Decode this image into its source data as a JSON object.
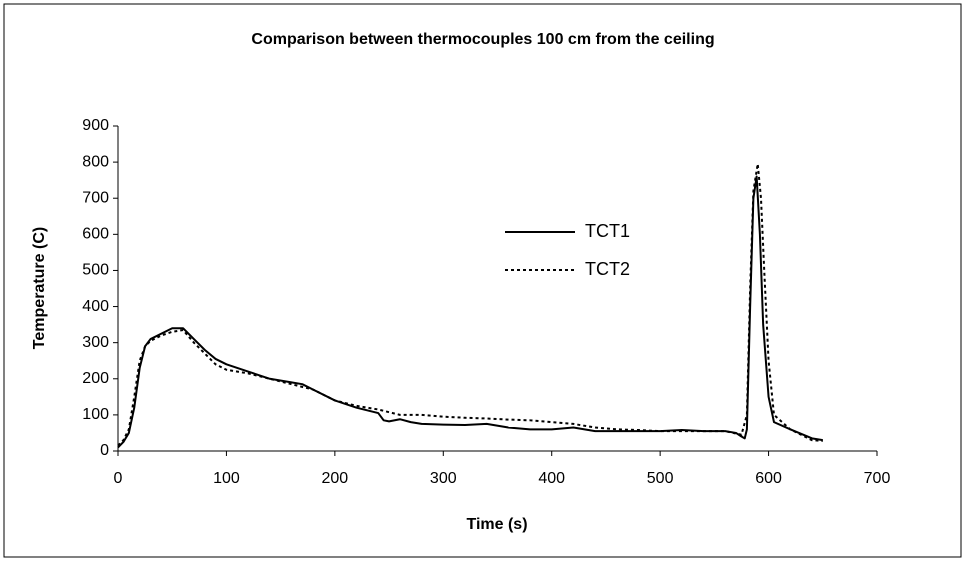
{
  "chart_data": {
    "type": "line",
    "title": "Comparison between thermocouples 100 cm from the ceiling",
    "x_label": "Time (s)",
    "y_label": "Temperature (C)",
    "xlim": [
      0,
      700
    ],
    "xticks": [
      0,
      100,
      200,
      300,
      400,
      500,
      600,
      700
    ],
    "ylim": [
      0,
      900
    ],
    "yticks": [
      0,
      100,
      200,
      300,
      400,
      500,
      600,
      700,
      800,
      900
    ],
    "grid": false,
    "legend": "center",
    "series": [
      {
        "name": "TCT1",
        "color": "#000000",
        "dash": "solid",
        "x": [
          0,
          5,
          10,
          15,
          20,
          25,
          30,
          40,
          50,
          60,
          70,
          80,
          90,
          100,
          120,
          140,
          160,
          170,
          180,
          200,
          220,
          240,
          245,
          250,
          260,
          270,
          280,
          300,
          320,
          340,
          360,
          380,
          400,
          420,
          440,
          460,
          480,
          500,
          520,
          540,
          560,
          570,
          575,
          578,
          580,
          583,
          586,
          589,
          592,
          595,
          600,
          605,
          620,
          640,
          650
        ],
        "values": [
          10,
          25,
          50,
          120,
          230,
          290,
          310,
          325,
          340,
          340,
          310,
          280,
          255,
          240,
          220,
          200,
          190,
          185,
          170,
          140,
          120,
          105,
          85,
          82,
          88,
          80,
          75,
          73,
          72,
          75,
          65,
          60,
          60,
          65,
          55,
          55,
          55,
          55,
          58,
          55,
          55,
          50,
          40,
          35,
          60,
          400,
          700,
          760,
          600,
          350,
          150,
          80,
          60,
          35,
          30
        ]
      },
      {
        "name": "TCT2",
        "color": "#000000",
        "dash": "dotted",
        "x": [
          0,
          5,
          10,
          15,
          20,
          25,
          30,
          40,
          50,
          60,
          70,
          80,
          90,
          100,
          120,
          140,
          160,
          180,
          200,
          220,
          240,
          260,
          280,
          300,
          320,
          340,
          360,
          380,
          400,
          420,
          440,
          460,
          480,
          500,
          520,
          540,
          560,
          575,
          580,
          583,
          586,
          590,
          593,
          596,
          600,
          605,
          620,
          640,
          650
        ],
        "values": [
          15,
          30,
          60,
          150,
          250,
          290,
          305,
          320,
          330,
          335,
          300,
          270,
          240,
          225,
          215,
          200,
          185,
          170,
          140,
          125,
          115,
          100,
          100,
          95,
          92,
          90,
          87,
          85,
          80,
          75,
          65,
          60,
          58,
          55,
          55,
          55,
          55,
          45,
          100,
          450,
          720,
          795,
          700,
          500,
          250,
          100,
          60,
          30,
          28
        ]
      }
    ]
  }
}
